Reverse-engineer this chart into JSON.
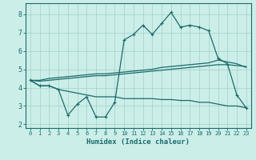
{
  "xlabel": "Humidex (Indice chaleur)",
  "bg_color": "#cceee8",
  "grid_color": "#aad4ce",
  "line_color": "#1a6b6b",
  "xlim": [
    -0.5,
    23.5
  ],
  "ylim": [
    1.8,
    8.6
  ],
  "yticks": [
    2,
    3,
    4,
    5,
    6,
    7,
    8
  ],
  "xticks": [
    0,
    1,
    2,
    3,
    4,
    5,
    6,
    7,
    8,
    9,
    10,
    11,
    12,
    13,
    14,
    15,
    16,
    17,
    18,
    19,
    20,
    21,
    22,
    23
  ],
  "series1_x": [
    0,
    1,
    2,
    3,
    4,
    5,
    6,
    7,
    8,
    9,
    10,
    11,
    12,
    13,
    14,
    15,
    16,
    17,
    18,
    19,
    20,
    21,
    22,
    23
  ],
  "series1_y": [
    4.4,
    4.1,
    4.1,
    3.9,
    2.5,
    3.1,
    3.5,
    2.4,
    2.4,
    3.2,
    6.6,
    6.9,
    7.4,
    6.9,
    7.5,
    8.1,
    7.3,
    7.4,
    7.3,
    7.1,
    5.6,
    5.3,
    3.6,
    2.9
  ],
  "series2_x": [
    0,
    1,
    2,
    3,
    4,
    5,
    6,
    7,
    8,
    9,
    10,
    11,
    12,
    13,
    14,
    15,
    16,
    17,
    18,
    19,
    20,
    21,
    22,
    23
  ],
  "series2_y": [
    4.4,
    4.35,
    4.4,
    4.45,
    4.5,
    4.55,
    4.6,
    4.65,
    4.65,
    4.7,
    4.75,
    4.8,
    4.85,
    4.9,
    4.95,
    5.0,
    5.05,
    5.1,
    5.15,
    5.2,
    5.25,
    5.25,
    5.2,
    5.15
  ],
  "series3_x": [
    0,
    1,
    2,
    3,
    4,
    5,
    6,
    7,
    8,
    9,
    10,
    11,
    12,
    13,
    14,
    15,
    16,
    17,
    18,
    19,
    20,
    21,
    22,
    23
  ],
  "series3_y": [
    4.4,
    4.4,
    4.5,
    4.55,
    4.6,
    4.65,
    4.7,
    4.75,
    4.75,
    4.8,
    4.85,
    4.9,
    4.95,
    5.0,
    5.1,
    5.15,
    5.2,
    5.25,
    5.3,
    5.35,
    5.5,
    5.4,
    5.3,
    5.1
  ],
  "series4_x": [
    0,
    1,
    2,
    3,
    4,
    5,
    6,
    7,
    8,
    9,
    10,
    11,
    12,
    13,
    14,
    15,
    16,
    17,
    18,
    19,
    20,
    21,
    22,
    23
  ],
  "series4_y": [
    4.4,
    4.1,
    4.1,
    3.9,
    3.8,
    3.7,
    3.6,
    3.5,
    3.5,
    3.5,
    3.4,
    3.4,
    3.4,
    3.4,
    3.35,
    3.35,
    3.3,
    3.3,
    3.2,
    3.2,
    3.1,
    3.0,
    3.0,
    2.9
  ]
}
